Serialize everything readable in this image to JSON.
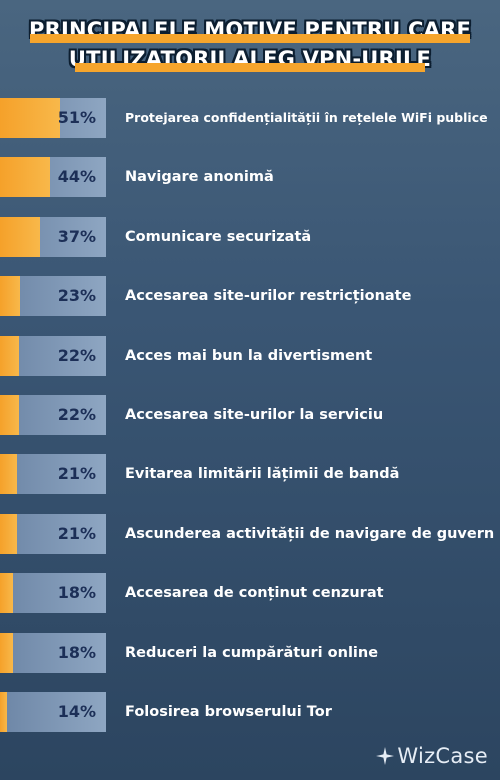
{
  "chart_data": {
    "type": "bar",
    "title": "PRINCIPALELE MOTIVE PENTRU CARE UTILIZATORII ALEG VPN-URILE",
    "title_lines": [
      "PRINCIPALELE MOTIVE PENTRU CARE",
      "UTILIZATORII ALEG VPN-URILE"
    ],
    "orientation": "horizontal",
    "categories": [
      "Protejarea confidențialității în rețelele WiFi publice",
      "Navigare anonimă",
      "Comunicare securizată",
      "Accesarea site-urilor restricționate",
      "Acces mai bun la divertisment",
      "Accesarea site-urilor la serviciu",
      "Evitarea limitării lățimii de bandă",
      "Ascunderea activității de navigare de guvern",
      "Accesarea de conținut cenzurat",
      "Reduceri la cumpărături online",
      "Folosirea browserului Tor"
    ],
    "values": [
      51,
      44,
      37,
      23,
      22,
      22,
      21,
      21,
      18,
      18,
      14
    ],
    "value_labels": [
      "51%",
      "44%",
      "37%",
      "23%",
      "22%",
      "22%",
      "21%",
      "21%",
      "18%",
      "18%",
      "14%"
    ],
    "unit": "%",
    "xlim": [
      0,
      100
    ],
    "grid": false,
    "legend": "none",
    "colors": {
      "bar_fill": "#f6a52c",
      "bar_track": "#7d96b6",
      "value_text": "#1c2f57",
      "label_text": "#ffffff",
      "background": "#3a5674"
    }
  },
  "brand": {
    "name": "WizCase",
    "icon": "sparkle-icon"
  }
}
